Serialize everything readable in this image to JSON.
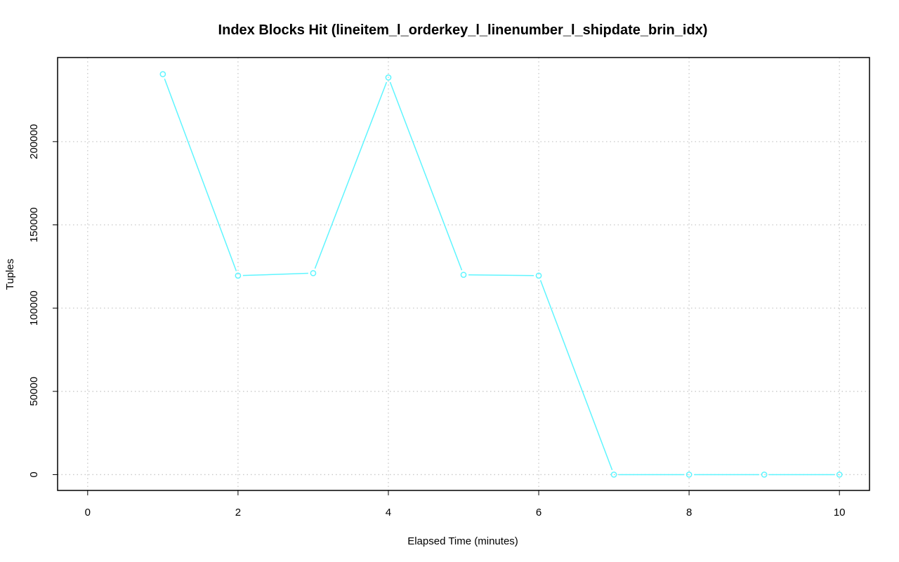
{
  "chart_data": {
    "type": "line",
    "title": "Index Blocks Hit (lineitem_l_orderkey_l_linenumber_l_shipdate_brin_idx)",
    "xlabel": "Elapsed Time (minutes)",
    "ylabel": "Tuples",
    "xlim": [
      -0.4,
      10.4
    ],
    "ylim": [
      -9500,
      250500
    ],
    "x_ticks": [
      0,
      2,
      4,
      6,
      8,
      10
    ],
    "x_tick_labels": [
      "0",
      "2",
      "4",
      "6",
      "8",
      "10"
    ],
    "y_ticks": [
      0,
      50000,
      100000,
      150000,
      200000
    ],
    "y_tick_labels": [
      "0",
      "50000",
      "100000",
      "150000",
      "200000"
    ],
    "grid": true,
    "series": [
      {
        "color": "#5ff5ff",
        "x": [
          1,
          2,
          3,
          4,
          5,
          6,
          7,
          8,
          9,
          10
        ],
        "y": [
          240500,
          119500,
          121000,
          238500,
          120000,
          119500,
          0,
          0,
          0,
          0
        ]
      }
    ]
  }
}
